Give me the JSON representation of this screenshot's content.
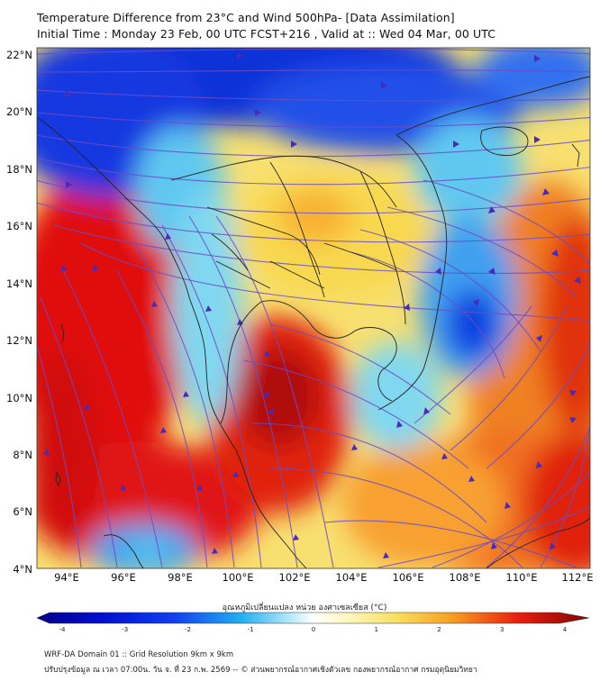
{
  "header": {
    "title_line1": "Temperature Difference from 23°C and Wind 500hPa- [Data Assimilation]",
    "title_line2": "Initial Time : Monday 23 Feb, 00 UTC FCST+216 , Valid at ::  Wed 04 Mar, 00 UTC"
  },
  "axes": {
    "lat_labels": [
      "22°N",
      "20°N",
      "18°N",
      "16°N",
      "14°N",
      "12°N",
      "10°N",
      "8°N",
      "6°N",
      "4°N"
    ],
    "lon_labels": [
      "94°E",
      "96°E",
      "98°E",
      "100°E",
      "102°E",
      "104°E",
      "106°E",
      "108°E",
      "110°E",
      "112°E"
    ]
  },
  "colorbar": {
    "title": "อุณหภูมิเปลี่ยนแปลง หน่วย องศาเซลเซียส (°C)",
    "ticks": [
      "-4",
      "-3",
      "-2",
      "-1",
      "0",
      "1",
      "2",
      "3",
      "4"
    ],
    "min": -4,
    "max": 4
  },
  "footer": {
    "line1": "WRF-DA Domain 01 :: Grid Resolution 9km x 9km",
    "line2": "ปรับปรุงข้อมูล ณ เวลา 07:00น. วัน จ. ที่ 23 ก.พ. 2569 -- © ส่วนพยากรณ์อากาศเชิงตัวเลข กองพยากรณ์อากาศ กรมอุตุนิยมวิทยา"
  },
  "colors": {
    "cold_blue": "#1030d8",
    "cyan": "#40c8f0",
    "yellow": "#f8e070",
    "orange": "#f08020",
    "red": "#e01010",
    "dark_red": "#b00808",
    "streamline": "#6a4cc8",
    "coast": "#222222"
  }
}
